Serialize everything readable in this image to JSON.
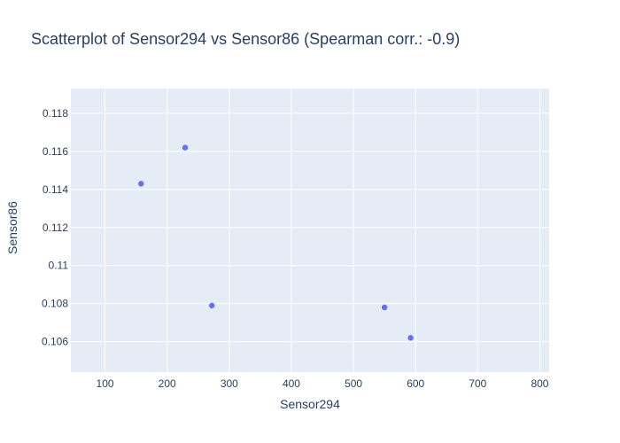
{
  "chart_data": {
    "type": "scatter",
    "title": "Scatterplot of Sensor294 vs Sensor86 (Spearman corr.: -0.9)",
    "xlabel": "Sensor294",
    "ylabel": "Sensor86",
    "xlim": [
      45,
      815
    ],
    "ylim": [
      0.1044,
      0.1193
    ],
    "x_ticks": [
      100,
      200,
      300,
      400,
      500,
      600,
      700,
      800
    ],
    "x_tick_labels": [
      "100",
      "200",
      "300",
      "400",
      "500",
      "600",
      "700",
      "800"
    ],
    "y_ticks": [
      0.106,
      0.108,
      0.11,
      0.112,
      0.114,
      0.116,
      0.118
    ],
    "y_tick_labels": [
      "0.106",
      "0.108",
      "0.11",
      "0.112",
      "0.114",
      "0.116",
      "0.118"
    ],
    "grid": true,
    "series": [
      {
        "points": [
          {
            "x": 158,
            "y": 0.1143
          },
          {
            "x": 229,
            "y": 0.1162
          },
          {
            "x": 272,
            "y": 0.1079
          },
          {
            "x": 550,
            "y": 0.1078
          },
          {
            "x": 592,
            "y": 0.1062
          }
        ]
      }
    ],
    "colors": {
      "marker": "#636efa",
      "plot_background": "#e5ecf6",
      "grid": "#ffffff",
      "text": "#2a3f5f"
    }
  }
}
